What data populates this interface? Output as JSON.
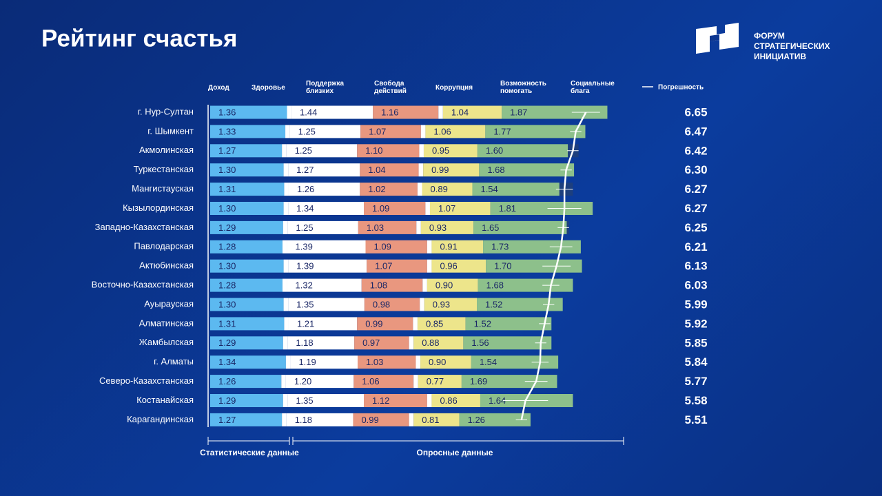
{
  "chart_data": {
    "type": "bar",
    "orientation": "horizontal",
    "stacked": true,
    "title": "Рейтинг счастья",
    "brand": "ФОРУМ СТРАТЕГИЧЕСКИХ ИНИЦИАТИВ",
    "categories": [
      "г. Нур-Султан",
      "г. Шымкент",
      "Акмолинская",
      "Туркестанская",
      "Мангистауская",
      "Кызылординская",
      "Западно-Казахстанская",
      "Павлодарская",
      "Актюбинская",
      "Восточно-Казахстанская",
      "Ayырауская",
      "Алматинская",
      "Жамбылская",
      "г. Алматы",
      "Северо-Казахстанская",
      "Костанайская",
      "Карагандинская"
    ],
    "series": [
      {
        "name": "Доход",
        "color": "#5cb9f0",
        "values": [
          1.36,
          1.33,
          1.27,
          1.3,
          1.31,
          1.3,
          1.29,
          1.28,
          1.3,
          1.28,
          1.3,
          1.31,
          1.29,
          1.34,
          1.26,
          1.29,
          1.27
        ],
        "value_labels": [
          "1.36",
          "1.33",
          "1.27",
          "1.30",
          "1.31",
          "1.30",
          "1.29",
          "1.28",
          "1.30",
          "1.28",
          "1.30",
          "1.31",
          "1.29",
          "1.34",
          "1.26",
          "1.29",
          "1.27"
        ]
      },
      {
        "name": "Здоровье",
        "color": "#ffffff",
        "values": [
          0.08,
          0.08,
          0.08,
          0.08,
          0.08,
          0.08,
          0.08,
          0.08,
          0.08,
          0.08,
          0.08,
          0.08,
          0.08,
          0.08,
          0.08,
          0.08,
          0.08
        ]
      },
      {
        "name": "Поддержка близких",
        "color": "#ffffff",
        "values": [
          1.44,
          1.25,
          1.25,
          1.27,
          1.26,
          1.34,
          1.25,
          1.39,
          1.39,
          1.32,
          1.35,
          1.21,
          1.18,
          1.19,
          1.2,
          1.35,
          1.18
        ],
        "value_labels": [
          "1.44",
          "1.25",
          "1.25",
          "1.27",
          "1.26",
          "1.34",
          "1.25",
          "1.39",
          "1.39",
          "1.32",
          "1.35",
          "1.21",
          "1.18",
          "1.19",
          "1.20",
          "1.35",
          "1.18"
        ]
      },
      {
        "name": "Свобода действий",
        "color": "#e9977f",
        "values": [
          1.16,
          1.07,
          1.1,
          1.04,
          1.02,
          1.09,
          1.03,
          1.09,
          1.07,
          1.08,
          0.98,
          0.99,
          0.97,
          1.03,
          1.06,
          1.12,
          0.99
        ],
        "value_labels": [
          "1.16",
          "1.07",
          "1.10",
          "1.04",
          "1.02",
          "1.09",
          "1.03",
          "1.09",
          "1.07",
          "1.08",
          "0.98",
          "0.99",
          "0.97",
          "1.03",
          "1.06",
          "1.12",
          "0.99"
        ]
      },
      {
        "name": "Коррупция",
        "color": "#ffffff",
        "values": [
          0.08,
          0.08,
          0.08,
          0.08,
          0.08,
          0.08,
          0.08,
          0.08,
          0.08,
          0.08,
          0.08,
          0.08,
          0.08,
          0.08,
          0.08,
          0.08,
          0.08
        ]
      },
      {
        "name": "Возможность помогать",
        "color": "#ede58b",
        "values": [
          1.04,
          1.06,
          0.95,
          0.99,
          0.89,
          1.07,
          0.93,
          0.91,
          0.96,
          0.9,
          0.93,
          0.85,
          0.88,
          0.9,
          0.77,
          0.86,
          0.81
        ],
        "value_labels": [
          "1.04",
          "1.06",
          "0.95",
          "0.99",
          "0.89",
          "1.07",
          "0.93",
          "0.91",
          "0.96",
          "0.90",
          "0.93",
          "0.85",
          "0.88",
          "0.90",
          "0.77",
          "0.86",
          "0.81"
        ]
      },
      {
        "name": "Социальные блага",
        "color": "#8dc08b",
        "values": [
          1.87,
          1.77,
          1.6,
          1.68,
          1.54,
          1.81,
          1.65,
          1.73,
          1.7,
          1.68,
          1.52,
          1.52,
          1.56,
          1.54,
          1.69,
          1.64,
          1.26
        ],
        "value_labels": [
          "1.87",
          "1.77",
          "1.60",
          "1.68",
          "1.54",
          "1.81",
          "1.65",
          "1.73",
          "1.70",
          "1.68",
          "1.52",
          "1.52",
          "1.56",
          "1.54",
          "1.69",
          "1.64",
          "1.26"
        ]
      }
    ],
    "scores": [
      6.65,
      6.47,
      6.42,
      6.3,
      6.27,
      6.27,
      6.25,
      6.21,
      6.13,
      6.03,
      5.99,
      5.92,
      5.85,
      5.84,
      5.77,
      5.58,
      5.51
    ],
    "score_labels": [
      "6.65",
      "6.47",
      "6.42",
      "6.30",
      "6.27",
      "6.27",
      "6.25",
      "6.21",
      "6.13",
      "6.03",
      "5.99",
      "5.92",
      "5.85",
      "5.84",
      "5.77",
      "5.58",
      "5.51"
    ],
    "error_name": "Погрешность",
    "errors": [
      0.25,
      0.1,
      0.1,
      0.1,
      0.15,
      0.3,
      0.1,
      0.2,
      0.25,
      0.15,
      0.1,
      0.1,
      0.1,
      0.15,
      0.2,
      0.4,
      0.1
    ],
    "group_labels": [
      "Статистические данные",
      "Опросные данные"
    ]
  }
}
